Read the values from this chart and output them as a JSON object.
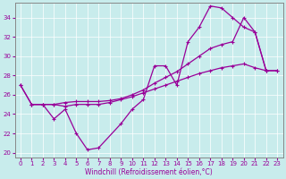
{
  "xlabel": "Windchill (Refroidissement éolien,°C)",
  "bg_color": "#c8ecec",
  "line_color": "#990099",
  "ylim": [
    19.5,
    35.5
  ],
  "xlim": [
    -0.5,
    23.5
  ],
  "yticks": [
    20,
    22,
    24,
    26,
    28,
    30,
    32,
    34
  ],
  "xticks": [
    0,
    1,
    2,
    3,
    4,
    5,
    6,
    7,
    8,
    9,
    10,
    11,
    12,
    13,
    14,
    15,
    16,
    17,
    18,
    19,
    20,
    21,
    22,
    23
  ],
  "s1_x": [
    0,
    1,
    2,
    3,
    4,
    5,
    6,
    7,
    9,
    10,
    11,
    12,
    13,
    14,
    15,
    16,
    17,
    18,
    19,
    20,
    21,
    22
  ],
  "s1_y": [
    27.0,
    25.0,
    25.0,
    23.5,
    24.5,
    22.0,
    20.3,
    20.5,
    23.0,
    24.5,
    25.5,
    29.0,
    29.0,
    27.0,
    31.5,
    33.0,
    35.2,
    35.0,
    34.0,
    33.0,
    32.5,
    28.5
  ],
  "s2_x": [
    0,
    1,
    2,
    3,
    4,
    5,
    6,
    7,
    8,
    9,
    10,
    11,
    12,
    13,
    14,
    15,
    16,
    17,
    18,
    19,
    20,
    21,
    22,
    23
  ],
  "s2_y": [
    27.0,
    25.0,
    25.0,
    25.0,
    25.2,
    25.3,
    25.3,
    25.3,
    25.4,
    25.6,
    26.0,
    26.5,
    27.2,
    27.8,
    28.4,
    29.2,
    30.0,
    30.8,
    31.2,
    31.5,
    34.0,
    32.5,
    28.5,
    28.5
  ],
  "s3_x": [
    1,
    2,
    3,
    4,
    5,
    6,
    7,
    8,
    9,
    10,
    11,
    12,
    13,
    14,
    15,
    16,
    17,
    18,
    19,
    20,
    21,
    22,
    23
  ],
  "s3_y": [
    25.0,
    25.0,
    25.0,
    24.8,
    25.0,
    25.0,
    25.0,
    25.2,
    25.5,
    25.8,
    26.2,
    26.6,
    27.0,
    27.4,
    27.8,
    28.2,
    28.5,
    28.8,
    29.0,
    29.2,
    28.8,
    28.5,
    28.5
  ]
}
